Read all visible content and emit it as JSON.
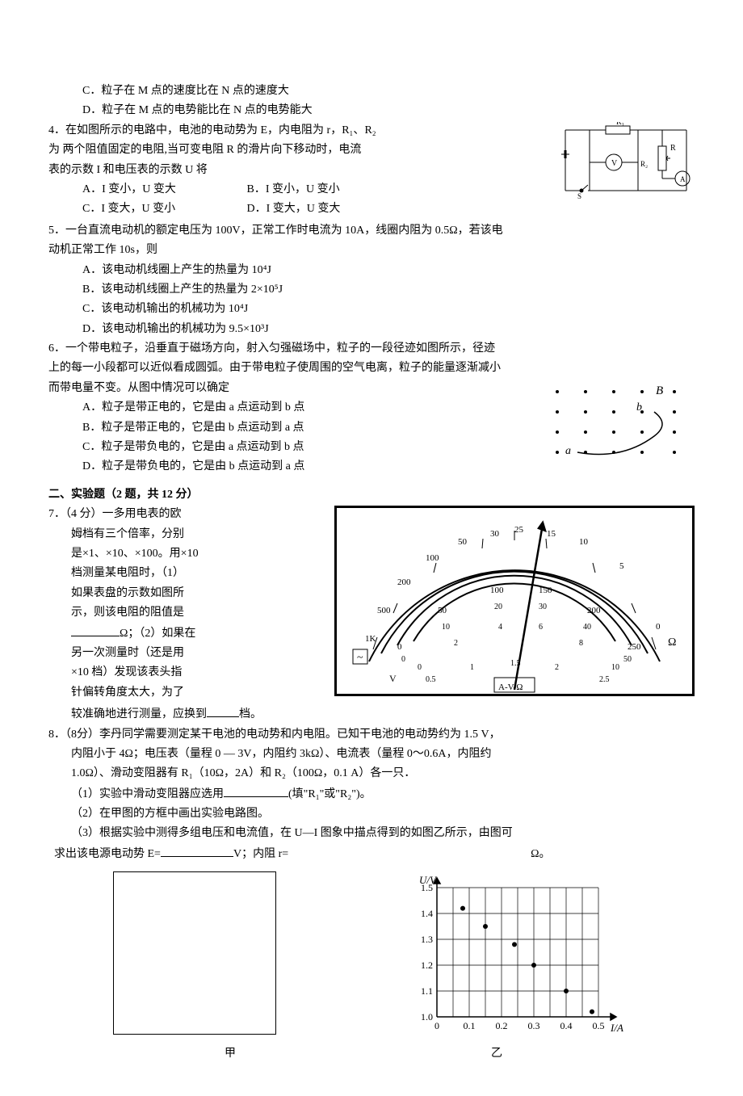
{
  "q3": {
    "optC": "C．粒子在 M 点的速度比在 N 点的速度大",
    "optD": "D．粒子在 M 点的电势能比在 N 点的电势能大"
  },
  "q4": {
    "stem1": "4．在如图所示的电路中，电池的电动势为 E，内电阻为 r，R₁、",
    "stem1b": "R₂",
    "stem2": "为 两个阻值固定的电阻,当可变电阻 R 的滑片向下移动时，电",
    "stem2b": "流",
    "stem3": "表的示数 I 和电压表的示数 U 将",
    "optA": "A．I 变小，U 变大",
    "optB": "B．I 变小，U 变小",
    "optC": "C．I 变大，U 变小",
    "optD": "D．I 变大，U 变大",
    "circuit": {
      "labels": {
        "R1": "R₁",
        "R2": "R₂",
        "R": "R",
        "V": "V",
        "A": "A",
        "S": "S"
      },
      "stroke": "#000000"
    }
  },
  "q5": {
    "stem1": "5．一台直流电动机的额定电压为 100V，正常工作时电流为 10A，线圈内阻为 0.5Ω，若该电",
    "stem2": "动机正常工作 10s，则",
    "optA": "A．该电动机线圈上产生的热量为 10⁴J",
    "optB": "B．该电动机线圈上产生的热量为 2×10⁵J",
    "optC": "C．该电动机输出的机械功为 10⁴J",
    "optD": "D．该电动机输出的机械功为 9.5×10³J"
  },
  "q6": {
    "stem1": "6．一个带电粒子，沿垂直于磁场方向，射入匀强磁场中，粒子的一段径迹如图所示，径迹",
    "stem2": "上的每一小段都可以近似看成圆弧。由于带电粒子使周围的空气电离，粒子的能量逐渐减小",
    "stem3": "而带电量不变。从图中情况可以确定",
    "optA": "A．粒子是带正电的，它是由 a 点运动到 b 点",
    "optB": "B．粒子是带正电的，它是由 b 点运动到 a 点",
    "optC": "C．粒子是带负电的，它是由 a 点运动到 b 点",
    "optD": "D．粒子是带负电的，它是由 b 点运动到 a 点",
    "fig": {
      "labelA": "a",
      "labelB": "b",
      "labelField": "B"
    }
  },
  "section2": "二、实验题（2 题，共 12 分）",
  "q7": {
    "l1": "7．（4 分）一多用电表的欧",
    "l2": "姆档有三个倍率，分别",
    "l3": "是×1、×10、×100。用×10",
    "l4": "档测量某电阻时，（1）",
    "l5": "如果表盘的示数如图所",
    "l6": "示，则该电阻的阻值是",
    "l7a": "",
    "l7unit": "Ω；（2）如果在",
    "l8": "另一次测量时（还是用",
    "l9": "×10 档）发现该表头指",
    "l10": "针偏转角度太大，为了",
    "l11": "较准确地进行测量，应换到",
    "l11b": "档。",
    "meter": {
      "scale_ohm_labels": [
        "1K",
        "500",
        "200",
        "100",
        "50",
        "30",
        "25",
        "15",
        "10",
        "5",
        "0"
      ],
      "scale_mid_labels": [
        "0",
        "50",
        "100",
        "150",
        "200",
        "250"
      ],
      "scale_inner_labels": [
        "0",
        "10",
        "20",
        "30",
        "40",
        "50"
      ],
      "scale_bottom_labels": [
        "0",
        "2",
        "4",
        "6",
        "8",
        "10"
      ],
      "v_labels": [
        "0",
        "0.5",
        "1",
        "1.5",
        "2",
        "2.5"
      ],
      "unit_v": "V",
      "unit_avo": "A-V-Ω",
      "unit_ohm": "Ω",
      "rect": "~"
    }
  },
  "q8": {
    "stem1": "8．（8分）李丹同学需要测定某干电池的电动势和内电阻。已知干电池的电动势约为 1.5 V，",
    "stem2": "内阻小于 4Ω；电压表（量程 0 — 3V，内阻约 3kΩ）、电流表（量程 0～0.6A，内阻约",
    "stem3": "1.0Ω）、滑动变阻器有 R₁（10Ω，2A）和 R₂（100Ω，0.1 A）各一只．",
    "p1a": "（1）实验中滑动变阻器应选用",
    "p1b": "(填\"R₁\"或\"R₂\")。",
    "p2": "（2）在甲图的方框中画出实验电路图。",
    "p3a": "（3）根据实验中测得多组电压和电流值，在 U—I 图象中描点得到的如图乙所示，由图可",
    "p3b": "求出该电源电动势 E=",
    "p3c": "V；内阻 r=",
    "p3d": "Ω。",
    "label_left": "甲",
    "label_right": "乙",
    "graph": {
      "ylabel": "U/V",
      "xlabel": "I/A",
      "yvals": [
        "1.0",
        "1.1",
        "1.2",
        "1.3",
        "1.4",
        "1.5"
      ],
      "xvals": [
        "0",
        "0.1",
        "0.2",
        "0.3",
        "0.4",
        "0.5"
      ],
      "points": [
        {
          "x": 0.08,
          "y": 1.42
        },
        {
          "x": 0.15,
          "y": 1.35
        },
        {
          "x": 0.24,
          "y": 1.28
        },
        {
          "x": 0.3,
          "y": 1.2
        },
        {
          "x": 0.4,
          "y": 1.1
        },
        {
          "x": 0.48,
          "y": 1.02
        }
      ],
      "grid_color": "#000000",
      "point_color": "#000000"
    }
  }
}
